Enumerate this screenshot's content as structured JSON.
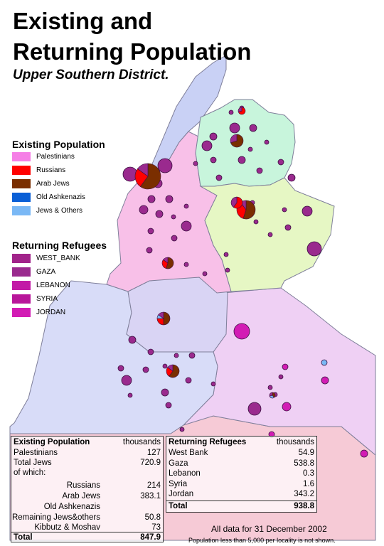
{
  "title_line1": "Existing and",
  "title_line2": "Returning Population",
  "subtitle": "Upper Southern District.",
  "existing_legend": {
    "heading": "Existing Population",
    "items": [
      {
        "label": "Palestinians",
        "color": "#f57fe6"
      },
      {
        "label": "Russians",
        "color": "#ff0000"
      },
      {
        "label": "Arab Jews",
        "color": "#7a2e00"
      },
      {
        "label": "Old Ashkenazis",
        "color": "#0a5fd6"
      },
      {
        "label": "Jews & Others",
        "color": "#7ab8f5"
      }
    ]
  },
  "refugee_legend": {
    "heading": "Returning Refugees",
    "items": [
      {
        "label": "WEST_BANK",
        "color": "#a1238a"
      },
      {
        "label": "GAZA",
        "color": "#9a2a8e"
      },
      {
        "label": "LEBANON",
        "color": "#c21aa6"
      },
      {
        "label": "SYRIA",
        "color": "#b8169a"
      },
      {
        "label": "JORDAN",
        "color": "#d21cb4"
      }
    ]
  },
  "existing_table": {
    "title": "Existing Population",
    "unit": "thousands",
    "palestinians_label": "Palestinians",
    "palestinians_value": "127",
    "total_jews_label": "Total Jews",
    "total_jews_value": "720.9",
    "of_which_label": "of which:",
    "russians_label": "Russians",
    "russians_value": "214",
    "arab_jews_label": "Arab Jews",
    "arab_jews_value": "383.1",
    "old_ashkenazi_label": "Old Ashkenazis",
    "remaining_label": "Remaining Jews&others",
    "remaining_value": "50.8",
    "kibbutz_label": "Kibbutz & Moshav",
    "kibbutz_value": "73",
    "total_label": "Total",
    "total_value": "847.9"
  },
  "refugee_table": {
    "title": "Returning Refugees",
    "unit": "thousands",
    "rows": [
      {
        "label": "West Bank",
        "value": "54.9"
      },
      {
        "label": "Gaza",
        "value": "538.8"
      },
      {
        "label": "Lebanon",
        "value": "0.3"
      },
      {
        "label": "Syria",
        "value": "1.6"
      },
      {
        "label": "Jordan",
        "value": "343.2"
      }
    ],
    "total_label": "Total",
    "total_value": "938.8"
  },
  "note_date": "All data for 31 December 2002",
  "note_threshold": "Population less than 5,000 per locality is not shown.",
  "colors": {
    "region_blue": "#c9d1f5",
    "region_pink": "#f8c0e8",
    "region_mint": "#c8f5dc",
    "region_lime": "#e6f7c4",
    "region_lavender": "#d9d4f4",
    "region_periwinkle": "#d8dcf8",
    "region_lilac": "#efd0f4",
    "region_rose": "#f6cad6",
    "border": "#7f7f9a"
  }
}
